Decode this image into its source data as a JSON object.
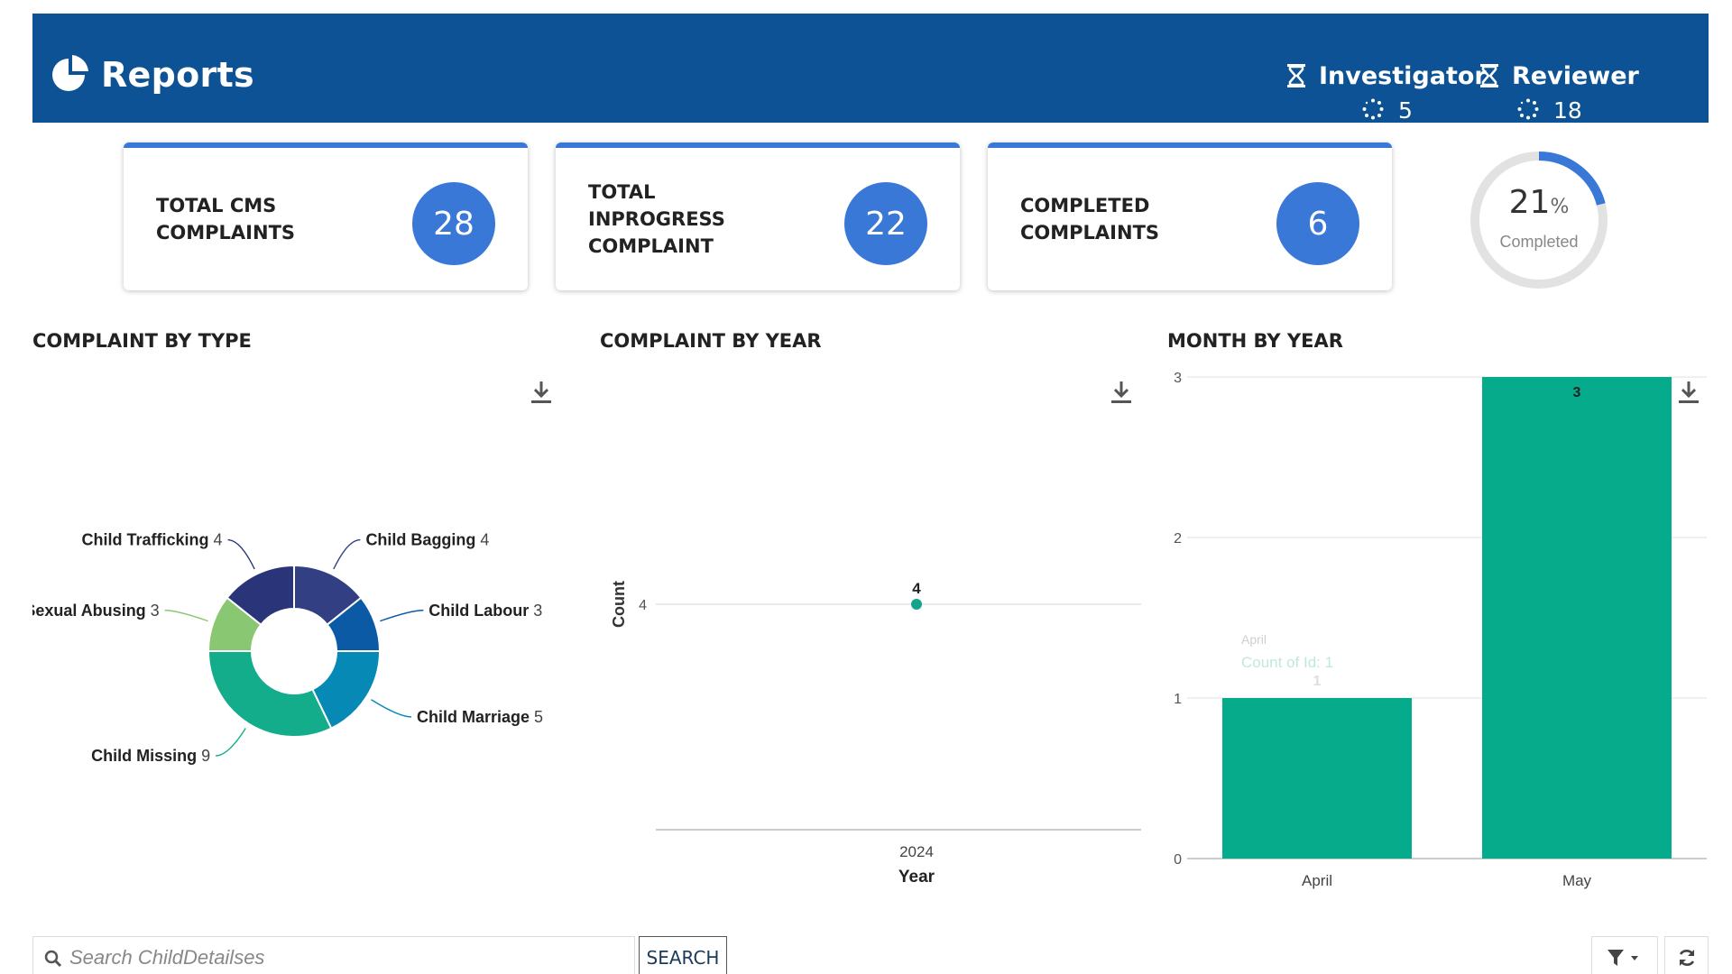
{
  "header": {
    "title": "Reports",
    "roles": [
      {
        "name": "Investigator",
        "count": "5"
      },
      {
        "name": "Reviewer",
        "count": "18"
      }
    ]
  },
  "cards": [
    {
      "label": "TOTAL CMS\nCOMPLAINTS",
      "value": "28"
    },
    {
      "label": "TOTAL\nINPROGRESS\nCOMPLAINT",
      "value": "22"
    },
    {
      "label": "COMPLETED\nCOMPLAINTS",
      "value": "6"
    }
  ],
  "gauge": {
    "percent": 21,
    "percent_text": "21",
    "symbol": "%",
    "label": "Completed"
  },
  "sections": {
    "type_title": "COMPLAINT BY TYPE",
    "year_title": "COMPLAINT BY YEAR",
    "month_title": "MONTH BY YEAR"
  },
  "chart_data": [
    {
      "type": "pie",
      "title": "COMPLAINT BY TYPE",
      "donut": true,
      "slices": [
        {
          "label": "Child Bagging",
          "value": 4,
          "color": "#323f82"
        },
        {
          "label": "Child Labour",
          "value": 3,
          "color": "#0b5aa6"
        },
        {
          "label": "Child Marriage",
          "value": 5,
          "color": "#0689b5"
        },
        {
          "label": "Child Missing",
          "value": 9,
          "color": "#14ad8b"
        },
        {
          "label": "Child Sexual Abusing",
          "value": 3,
          "color": "#8ac772"
        },
        {
          "label": "Child Trafficking",
          "value": 4,
          "color": "#2a3579"
        }
      ]
    },
    {
      "type": "scatter",
      "title": "COMPLAINT BY YEAR",
      "xlabel": "Year",
      "ylabel": "Count",
      "x": [
        "2024"
      ],
      "y": [
        4
      ],
      "data_labels": [
        "4"
      ],
      "color": "#14a38b"
    },
    {
      "type": "bar",
      "title": "MONTH BY YEAR",
      "categories": [
        "April",
        "May"
      ],
      "values": [
        1,
        3
      ],
      "ylim": [
        0,
        3
      ],
      "yticks": [
        "0",
        "1",
        "2",
        "3"
      ],
      "color": "#05ab8a",
      "tooltip": {
        "title": "April",
        "text": "Count of Id: 1"
      }
    }
  ],
  "search": {
    "placeholder": "Search ChildDetailses",
    "button": "SEARCH"
  }
}
